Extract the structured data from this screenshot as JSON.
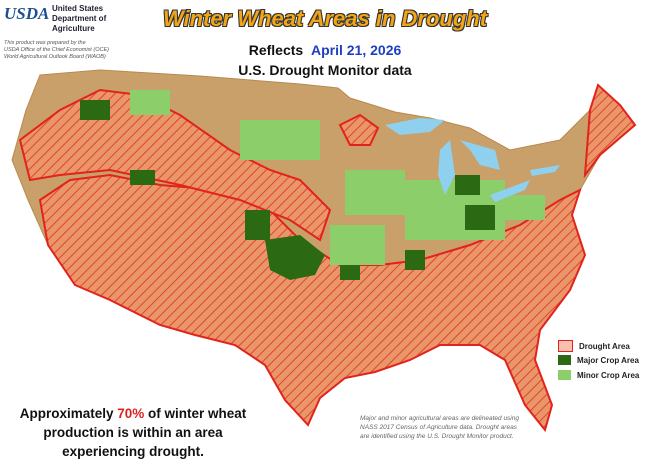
{
  "header": {
    "logo": "USDA",
    "agency": [
      "United States",
      "Department of",
      "Agriculture"
    ],
    "credit": [
      "This product was prepared by the",
      "USDA Office of the Chief Economist (OCE)",
      "World Agricultural Outlook Board (WAOB)"
    ],
    "title": "Winter Wheat Areas in Drought",
    "reflects_label": "Reflects",
    "date": "April 21, 2026",
    "source": "U.S. Drought Monitor data"
  },
  "legend": [
    "Drought Area",
    "Major Crop Area",
    "Minor Crop Area"
  ],
  "summary": {
    "before": "Approximately ",
    "highlight": "70%",
    "after": " of winter wheat production is within an area experiencing drought."
  },
  "note": "Major and minor agricultural areas are delineated using NASS 2017 Census of Agriculture data. Drought areas are identified using the U.S. Drought Monitor product."
}
